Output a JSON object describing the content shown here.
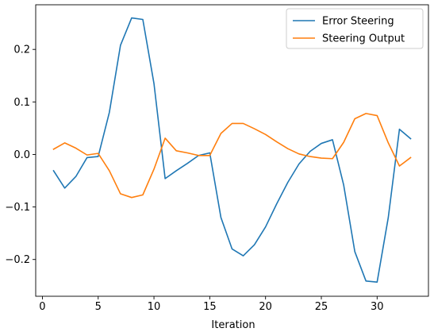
{
  "chart_data": {
    "type": "line",
    "title": "",
    "xlabel": "Iteration",
    "ylabel": "",
    "xlim": [
      -0.6,
      34.6
    ],
    "ylim": [
      -0.27,
      0.285
    ],
    "xticks": [
      0,
      5,
      10,
      15,
      20,
      25,
      30
    ],
    "yticks": [
      -0.2,
      -0.1,
      0.0,
      0.1,
      0.2
    ],
    "ytick_labels": [
      "−0.2",
      "−0.1",
      "0.0",
      "0.1",
      "0.2"
    ],
    "xtick_labels": [
      "0",
      "5",
      "10",
      "15",
      "20",
      "25",
      "30"
    ],
    "grid": false,
    "legend_position": "top-right",
    "x": [
      1,
      2,
      3,
      4,
      5,
      6,
      7,
      8,
      9,
      10,
      11,
      12,
      13,
      14,
      15,
      16,
      17,
      18,
      19,
      20,
      21,
      22,
      23,
      24,
      25,
      26,
      27,
      28,
      29,
      30,
      31,
      32,
      33
    ],
    "series": [
      {
        "name": "Error Steering",
        "color": "#1f77b4",
        "values": [
          -0.031,
          -0.064,
          -0.042,
          -0.006,
          -0.004,
          0.08,
          0.208,
          0.26,
          0.257,
          0.135,
          -0.046,
          -0.031,
          -0.017,
          -0.002,
          0.003,
          -0.12,
          -0.18,
          -0.193,
          -0.172,
          -0.138,
          -0.094,
          -0.053,
          -0.018,
          0.006,
          0.021,
          0.028,
          -0.058,
          -0.185,
          -0.241,
          -0.243,
          -0.12,
          0.048,
          0.03
        ]
      },
      {
        "name": "Steering Output",
        "color": "#ff7f0e",
        "values": [
          0.01,
          0.022,
          0.012,
          -0.001,
          0.002,
          -0.031,
          -0.075,
          -0.082,
          -0.077,
          -0.028,
          0.031,
          0.007,
          0.003,
          -0.002,
          -0.002,
          0.04,
          0.059,
          0.059,
          0.049,
          0.038,
          0.024,
          0.011,
          0.001,
          -0.004,
          -0.007,
          -0.008,
          0.023,
          0.068,
          0.078,
          0.074,
          0.022,
          -0.022,
          -0.006
        ]
      }
    ]
  }
}
